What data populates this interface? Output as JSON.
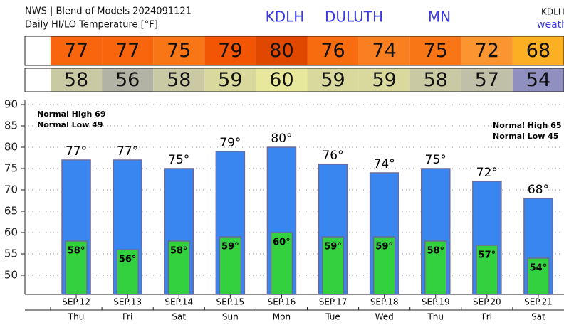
{
  "chart_data": {
    "type": "bar",
    "title": "NWS | Blend of Models 2024091121",
    "subtitle": "Daily HI/LO Temperature [°F]",
    "station": [
      "KDLH",
      "DULUTH",
      "MN"
    ],
    "corner": [
      "KDLH",
      "weath"
    ],
    "categories": [
      "SEP.12",
      "SEP.13",
      "SEP.14",
      "SEP.15",
      "SEP.16",
      "SEP.17",
      "SEP.18",
      "SEP.19",
      "SEP.20",
      "SEP.21"
    ],
    "days": [
      "Thu",
      "Fri",
      "Sat",
      "Sun",
      "Mon",
      "Tue",
      "Wed",
      "Thu",
      "Fri",
      "Sat"
    ],
    "series": [
      {
        "color": "#3a86f0",
        "values": [
          77,
          77,
          75,
          79,
          80,
          76,
          74,
          75,
          72,
          68
        ],
        "value_labels": [
          "77°",
          "77°",
          "75°",
          "79°",
          "80°",
          "76°",
          "74°",
          "75°",
          "72°",
          "68°"
        ],
        "cell_colors": [
          "#f8650c",
          "#f8650c",
          "#f97616",
          "#f25604",
          "#e04800",
          "#f86c10",
          "#fa7f20",
          "#f97616",
          "#fa9530",
          "#fbb024"
        ]
      },
      {
        "color": "#33d13f",
        "values": [
          58,
          56,
          58,
          59,
          60,
          59,
          59,
          58,
          57,
          54
        ],
        "value_labels": [
          "58°",
          "56°",
          "58°",
          "59°",
          "60°",
          "59°",
          "59°",
          "58°",
          "57°",
          "54°"
        ],
        "cell_colors": [
          "#c9c9a3",
          "#b3b3a5",
          "#c9c9a3",
          "#d9d99e",
          "#e8e89c",
          "#d9d99e",
          "#d9d99e",
          "#c9c9a3",
          "#c0c0a8",
          "#8f8fc0"
        ]
      }
    ],
    "annotations": [
      "Normal High 69",
      "Normal Low 49",
      "Normal High 65",
      "Normal Low 45"
    ],
    "ylim": [
      45.5,
      90
    ],
    "yticks": [
      50,
      55,
      60,
      65,
      70,
      75,
      80,
      85,
      90
    ],
    "grid": true
  }
}
